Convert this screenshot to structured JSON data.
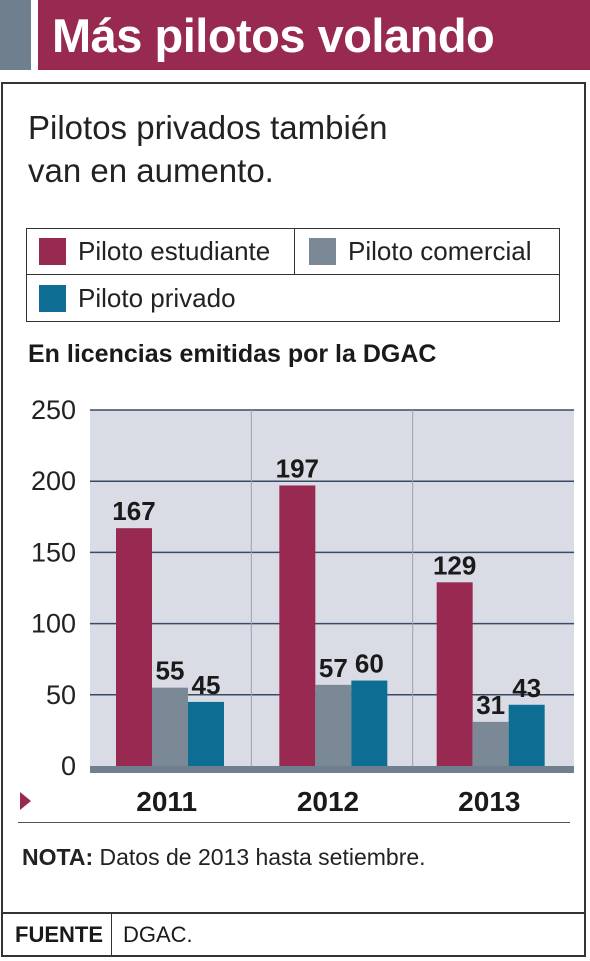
{
  "header": {
    "title": "Más pilotos volando"
  },
  "subtitle": {
    "line1": "Pilotos privados también",
    "line2": "van en aumento."
  },
  "colors": {
    "header_bg": "#982a51",
    "header_stripe": "#6f7f8d",
    "plot_bg": "#d9dce5",
    "student": "#982a51",
    "commercial": "#7b8896",
    "private": "#0e6d92"
  },
  "chart_data": {
    "type": "bar",
    "title": "En licencias emitidas por la DGAC",
    "categories": [
      "2011",
      "2012",
      "2013"
    ],
    "series": [
      {
        "name": "Piloto estudiante",
        "values": [
          167,
          197,
          129
        ]
      },
      {
        "name": "Piloto comercial",
        "values": [
          55,
          57,
          31
        ]
      },
      {
        "name": "Piloto privado",
        "values": [
          45,
          60,
          43
        ]
      }
    ],
    "ylim": [
      0,
      250
    ],
    "yticks": [
      "0",
      "50",
      "100",
      "150",
      "200",
      "250"
    ],
    "grid": true,
    "legend_position": "top"
  },
  "note": {
    "label": "NOTA:",
    "text": "Datos de 2013 hasta setiembre."
  },
  "source": {
    "label": "FUENTE",
    "value": "DGAC."
  }
}
